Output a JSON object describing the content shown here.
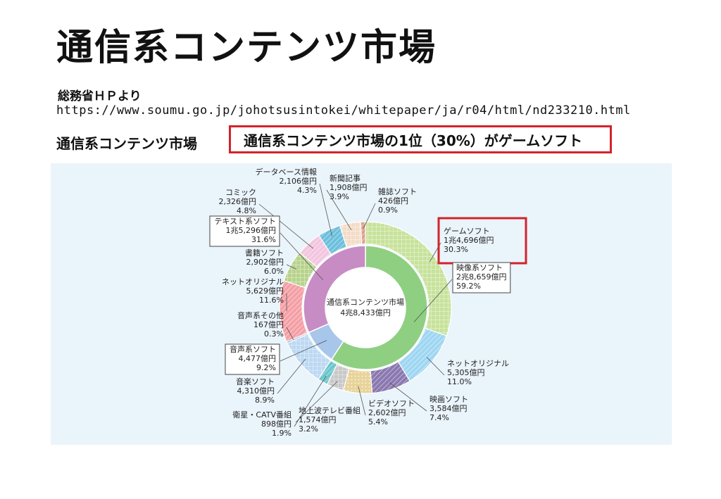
{
  "page": {
    "title": "通信系コンテンツ市場",
    "source": "総務省ＨＰより",
    "url": "https://www.soumu.go.jp/johotsusintokei/whitepaper/ja/r04/html/nd233210.html",
    "label": "通信系コンテンツ市場",
    "highlight": "通信系コンテンツ市場の1位（30%）がゲームソフト"
  },
  "chart_data": {
    "type": "pie",
    "title": "",
    "center_label": [
      "通信系コンテンツ市場",
      "4兆8,433億円"
    ],
    "inner": [
      {
        "name": "映像系ソフト",
        "amount": "2兆8,659億円",
        "percent": 59.2,
        "color": "#8fcf82",
        "boxed": true
      },
      {
        "name": "音声系ソフト",
        "amount": "4,477億円",
        "percent": 9.2,
        "color": "#a8c6ea",
        "boxed": true
      },
      {
        "name": "テキスト系ソフト",
        "amount": "1兆5,296億円",
        "percent": 31.6,
        "color": "#c88cc4",
        "boxed": true
      }
    ],
    "outer": [
      {
        "name": "ゲームソフト",
        "amount": "1兆4,696億円",
        "percent": 30.3,
        "color": "#c7e29b",
        "group": "映像系ソフト",
        "highlighted": true
      },
      {
        "name": "ネットオリジナル",
        "amount": "5,305億円",
        "percent": 11.0,
        "color": "#9fd6f2",
        "group": "映像系ソフト"
      },
      {
        "name": "映画ソフト",
        "amount": "3,584億円",
        "percent": 7.4,
        "color": "#8a79b0",
        "group": "映像系ソフト"
      },
      {
        "name": "ビデオソフト",
        "amount": "2,602億円",
        "percent": 5.4,
        "color": "#e8d49a",
        "group": "映像系ソフト"
      },
      {
        "name": "地上波テレビ番組",
        "amount": "1,574億円",
        "percent": 3.2,
        "color": "#c8c8c8",
        "group": "映像系ソフト"
      },
      {
        "name": "衛星・CATV番組",
        "amount": "898億円",
        "percent": 1.9,
        "color": "#6cc6cb",
        "group": "映像系ソフト"
      },
      {
        "name": "音楽ソフト",
        "amount": "4,310億円",
        "percent": 8.9,
        "color": "#bcd8f2",
        "group": "音声系ソフト"
      },
      {
        "name": "音声系その他",
        "amount": "167億円",
        "percent": 0.3,
        "color": "#7d9ac4",
        "group": "音声系ソフト"
      },
      {
        "name": "ネットオリジナル",
        "amount": "5,629億円",
        "percent": 11.6,
        "color": "#f4a0a6",
        "group": "テキスト系ソフト"
      },
      {
        "name": "書籍ソフト",
        "amount": "2,902億円",
        "percent": 6.0,
        "color": "#b7d28c",
        "group": "テキスト系ソフト"
      },
      {
        "name": "コミック",
        "amount": "2,326億円",
        "percent": 4.8,
        "color": "#f3c6e0",
        "group": "テキスト系ソフト"
      },
      {
        "name": "データベース情報",
        "amount": "2,106億円",
        "percent": 4.3,
        "color": "#6cc0dc",
        "group": "テキスト系ソフト"
      },
      {
        "name": "新聞記事",
        "amount": "1,908億円",
        "percent": 3.9,
        "color": "#f3dcc8",
        "group": "テキスト系ソフト"
      },
      {
        "name": "雑誌ソフト",
        "amount": "426億円",
        "percent": 0.9,
        "color": "#e0a08a",
        "group": "テキスト系ソフト"
      }
    ]
  }
}
